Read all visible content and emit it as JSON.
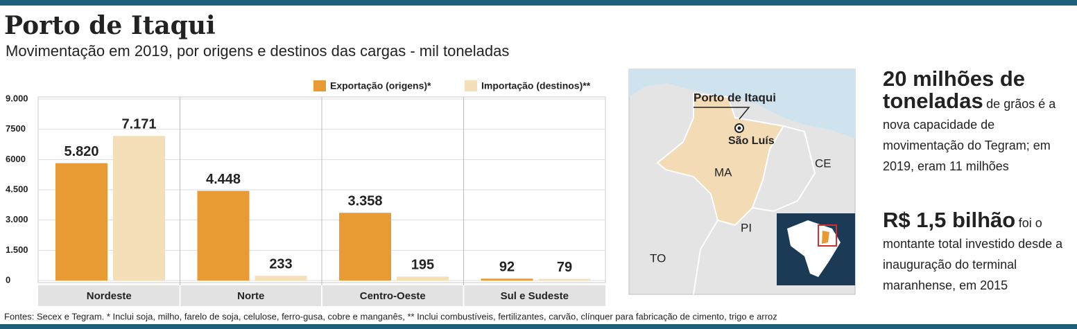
{
  "chart_data": {
    "type": "bar",
    "title": "Porto de Itaqui",
    "subtitle": "Movimentação em 2019, por origens e destinos das cargas - mil toneladas",
    "categories": [
      "Nordeste",
      "Norte",
      "Centro-Oeste",
      "Sul e Sudeste"
    ],
    "series": [
      {
        "name": "Exportação (origens)*",
        "color": "#e89a35",
        "values": [
          5820,
          4448,
          3358,
          92
        ],
        "value_labels": [
          "5.820",
          "4.448",
          "3.358",
          "92"
        ]
      },
      {
        "name": "Importação (destinos)**",
        "color": "#f5dfb8",
        "values": [
          7171,
          233,
          195,
          79
        ],
        "value_labels": [
          "7.171",
          "233",
          "195",
          "79"
        ]
      }
    ],
    "ylim": [
      0,
      9000
    ],
    "yticks": [
      {
        "value": 9000,
        "label": "9.000"
      },
      7500,
      6000,
      {
        "value": 4500,
        "label": "4.500"
      },
      {
        "value": 3000,
        "label": "3.000"
      },
      {
        "value": 1500,
        "label": "1.500"
      },
      0
    ],
    "grid": true,
    "legend": "top-right",
    "source": "Fontes: Secex e Tegram. * Inclui soja, milho, farelo de soja, celulose, ferro-gusa, cobre e manganês, ** Inclui combustíveis, fertilizantes, carvão, clínquer para fabricação de cimento, trigo e arroz"
  },
  "map": {
    "port": "Porto de Itaqui",
    "city": "São Luís",
    "states": [
      "MA",
      "CE",
      "PI",
      "TO"
    ]
  },
  "side": [
    {
      "big": "20 milhões de toneladas",
      "small": "de grãos é a nova capacidade de movimentação do Tegram; em 2019, eram 11 milhões"
    },
    {
      "big": "R$ 1,5 bilhão",
      "small": "foi o montante total investido desde a inauguração do terminal maranhense, em 2015"
    }
  ]
}
